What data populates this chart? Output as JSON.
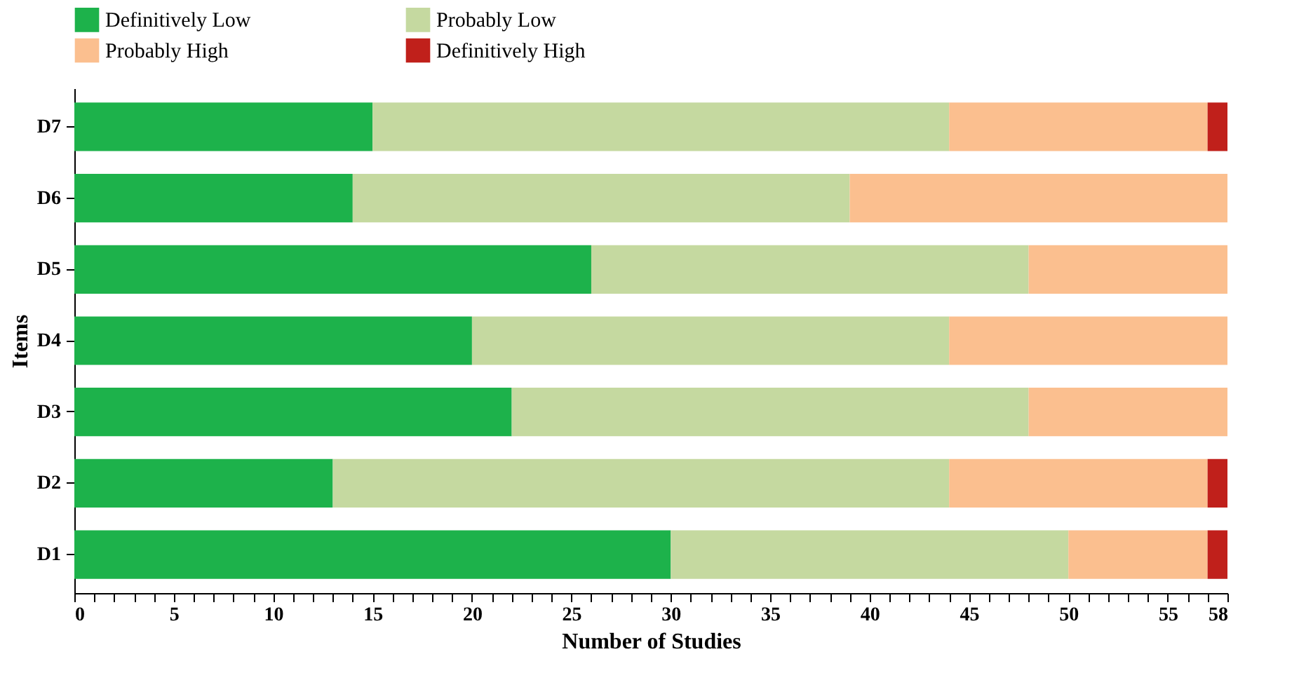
{
  "chart_data": {
    "type": "bar",
    "orientation": "horizontal",
    "stacked": true,
    "xlabel": "Number of Studies",
    "ylabel": "Items",
    "legend": "top",
    "categories": [
      "D7",
      "D6",
      "D5",
      "D4",
      "D3",
      "D2",
      "D1"
    ],
    "series": [
      {
        "name": "Definitively Low",
        "color": "#1db24b",
        "values": [
          15,
          14,
          26,
          20,
          22,
          13,
          30
        ]
      },
      {
        "name": "Probably Low",
        "color": "#c5d9a0",
        "values": [
          29,
          25,
          22,
          24,
          26,
          31,
          20
        ]
      },
      {
        "name": "Probably High",
        "color": "#fbbf8f",
        "values": [
          13,
          19,
          10,
          14,
          10,
          13,
          7
        ]
      },
      {
        "name": "Definitively High",
        "color": "#c0201b",
        "values": [
          1,
          0,
          0,
          0,
          0,
          1,
          1
        ]
      }
    ],
    "xlim": [
      0,
      58
    ],
    "xticks": [
      0,
      {
        "value": 1,
        "label": null
      },
      {
        "value": 2,
        "label": null
      },
      {
        "value": 3,
        "label": null
      },
      {
        "value": 4,
        "label": null
      },
      5,
      {
        "value": 6,
        "label": null
      },
      {
        "value": 7,
        "label": null
      },
      {
        "value": 8,
        "label": null
      },
      {
        "value": 9,
        "label": null
      },
      10,
      {
        "value": 11,
        "label": null
      },
      {
        "value": 12,
        "label": null
      },
      {
        "value": 13,
        "label": null
      },
      {
        "value": 14,
        "label": null
      },
      15,
      {
        "value": 16,
        "label": null
      },
      {
        "value": 17,
        "label": null
      },
      {
        "value": 18,
        "label": null
      },
      {
        "value": 19,
        "label": null
      },
      20,
      {
        "value": 21,
        "label": null
      },
      {
        "value": 22,
        "label": null
      },
      {
        "value": 23,
        "label": null
      },
      {
        "value": 24,
        "label": null
      },
      25,
      {
        "value": 26,
        "label": null
      },
      {
        "value": 27,
        "label": null
      },
      {
        "value": 28,
        "label": null
      },
      {
        "value": 29,
        "label": null
      },
      30,
      {
        "value": 31,
        "label": null
      },
      {
        "value": 32,
        "label": null
      },
      {
        "value": 33,
        "label": null
      },
      {
        "value": 34,
        "label": null
      },
      35,
      {
        "value": 36,
        "label": null
      },
      {
        "value": 37,
        "label": null
      },
      {
        "value": 38,
        "label": null
      },
      {
        "value": 39,
        "label": null
      },
      40,
      {
        "value": 41,
        "label": null
      },
      {
        "value": 42,
        "label": null
      },
      {
        "value": 43,
        "label": null
      },
      {
        "value": 44,
        "label": null
      },
      45,
      {
        "value": 46,
        "label": null
      },
      {
        "value": 47,
        "label": null
      },
      {
        "value": 48,
        "label": null
      },
      {
        "value": 49,
        "label": null
      },
      50,
      {
        "value": 51,
        "label": null
      },
      {
        "value": 52,
        "label": null
      },
      {
        "value": 53,
        "label": null
      },
      {
        "value": 54,
        "label": null
      },
      55,
      {
        "value": 56,
        "label": null
      },
      {
        "value": 57,
        "label": null
      },
      58
    ]
  }
}
